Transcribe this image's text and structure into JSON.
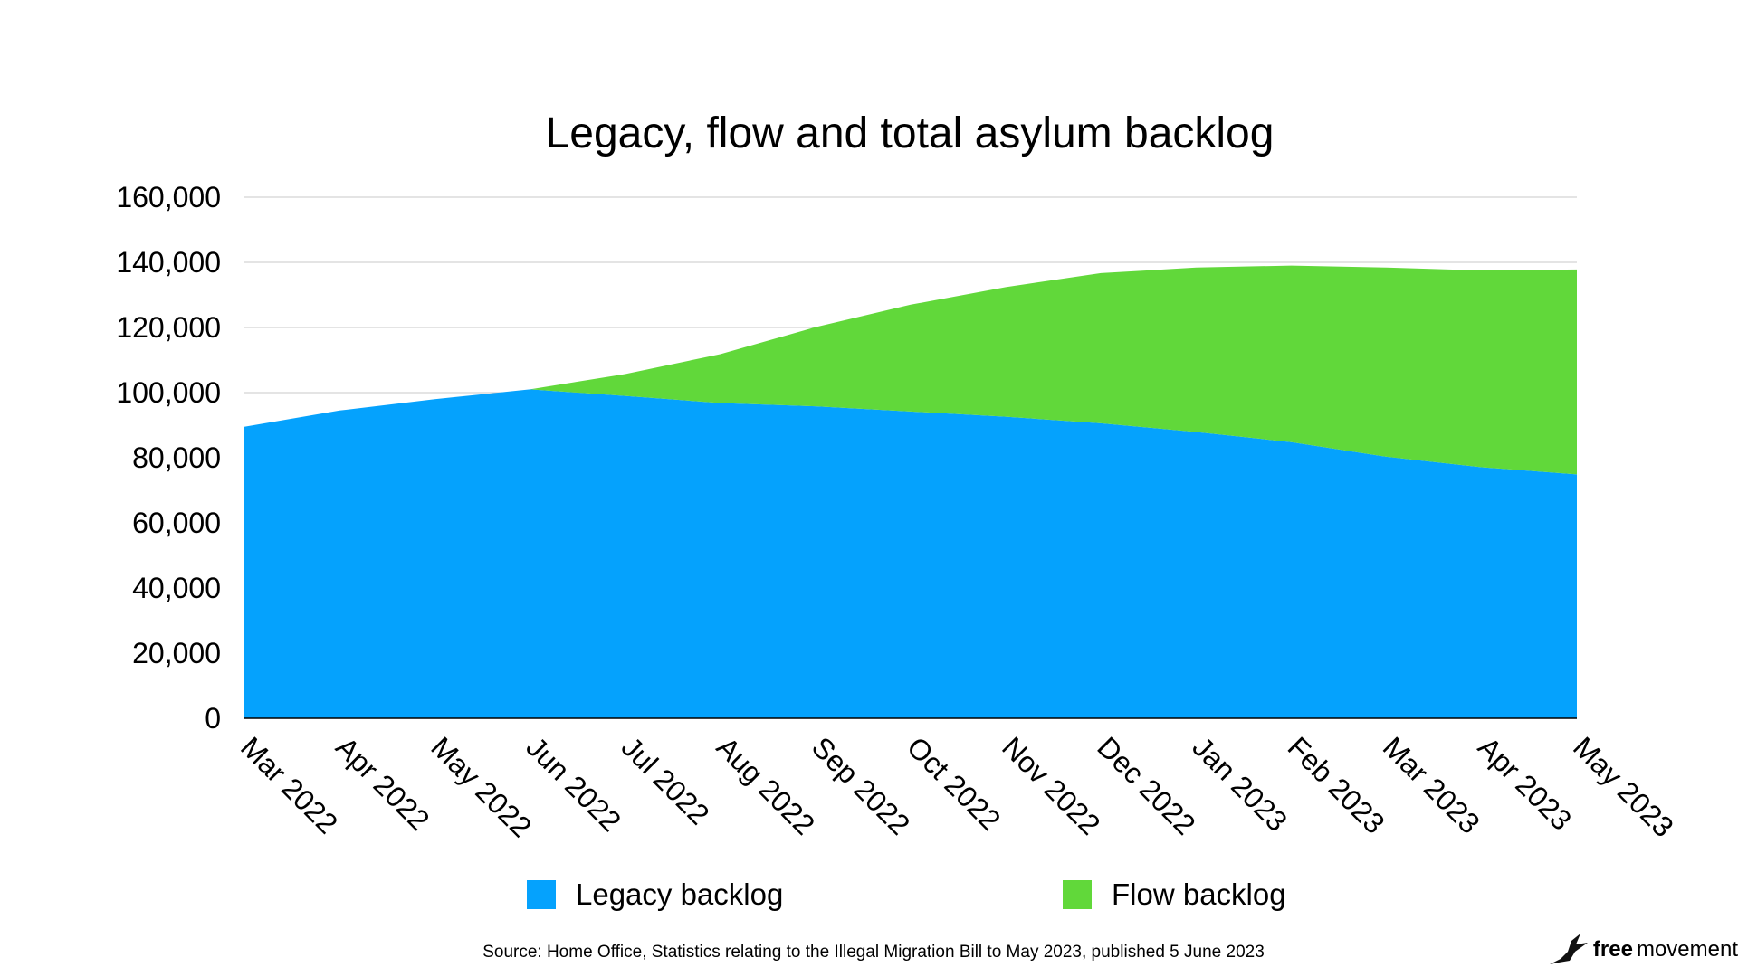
{
  "chart_data": {
    "type": "area",
    "stacked": true,
    "title": "Legacy, flow and total asylum backlog",
    "categories": [
      "Mar 2022",
      "Apr 2022",
      "May 2022",
      "Jun 2022",
      "Jul 2022",
      "Aug 2022",
      "Sep 2022",
      "Oct 2022",
      "Nov 2022",
      "Dec 2022",
      "Jan 2023",
      "Feb 2023",
      "Mar 2023",
      "Apr 2023",
      "May 2023"
    ],
    "series": [
      {
        "name": "Legacy backlog",
        "color": "#05a2fd",
        "values": [
          89500,
          94500,
          98000,
          101000,
          99000,
          96800,
          95800,
          94200,
          92600,
          90600,
          87900,
          84800,
          80300,
          77100,
          74900
        ]
      },
      {
        "name": "Flow backlog",
        "color": "#61d83a",
        "values": [
          0,
          0,
          0,
          0,
          6700,
          15000,
          24300,
          32800,
          39800,
          46100,
          50500,
          54200,
          58100,
          60400,
          62900
        ]
      }
    ],
    "ylim": [
      0,
      160000
    ],
    "yticks": [
      0,
      20000,
      40000,
      60000,
      80000,
      100000,
      120000,
      140000,
      160000
    ],
    "ytick_labels": [
      "0",
      "20,000",
      "40,000",
      "60,000",
      "80,000",
      "100,000",
      "120,000",
      "140,000",
      "160,000"
    ],
    "grid": true,
    "legend_position": "bottom",
    "xlabel": "",
    "ylabel": ""
  },
  "legend": {
    "legacy_label": "Legacy backlog",
    "flow_label": "Flow backlog"
  },
  "source_note": "Source: Home Office, Statistics relating to the Illegal Migration Bill to May 2023, published 5 June 2023",
  "brand": {
    "free": "free",
    "movement": "movement",
    "icon": "bird-icon"
  },
  "colors": {
    "legacy": "#05a2fd",
    "flow": "#61d83a",
    "grid": "#c8c8c8"
  }
}
